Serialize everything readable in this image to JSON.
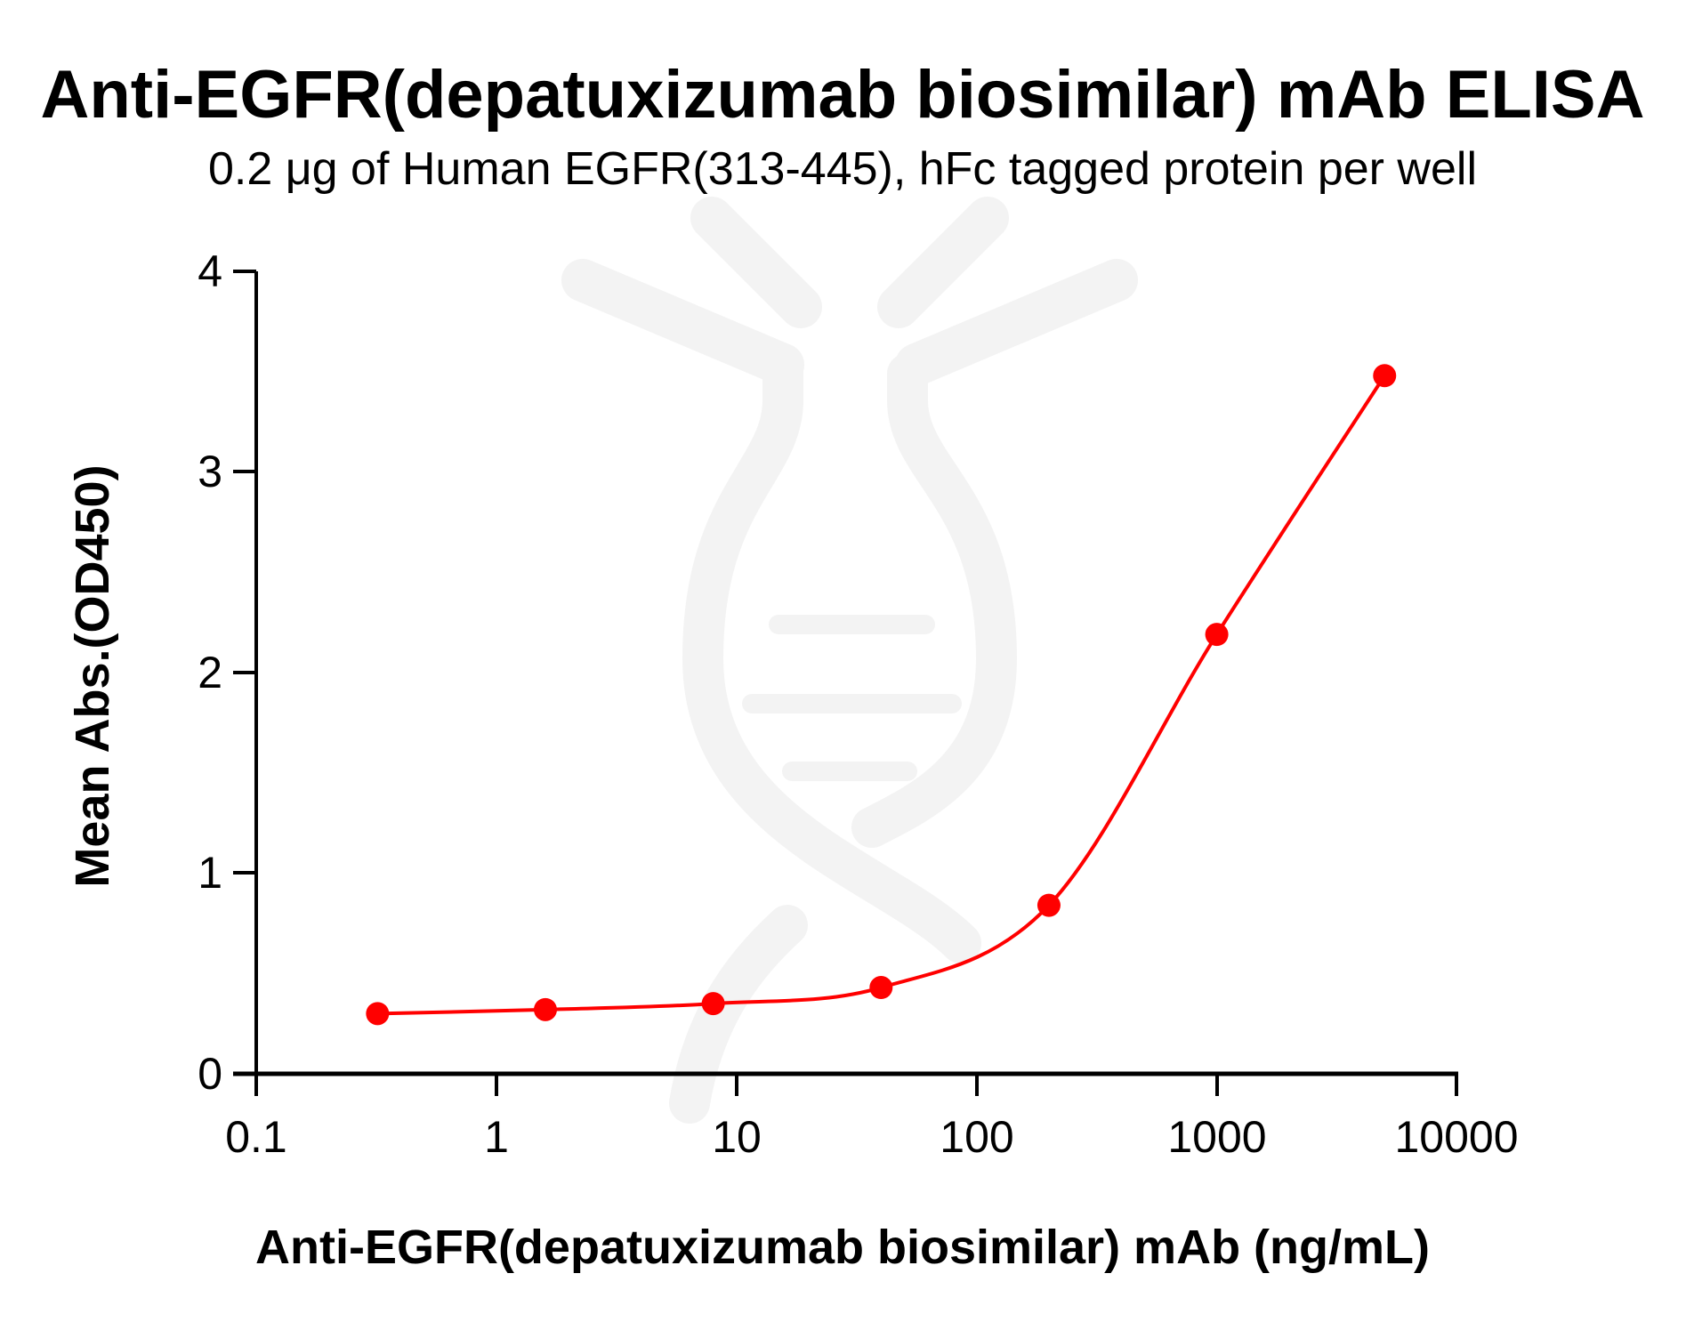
{
  "chart_data": {
    "type": "line",
    "title": "Anti-EGFR(depatuxizumab biosimilar) mAb ELISA",
    "subtitle": "0.2 μg of Human EGFR(313-445), hFc tagged protein per well",
    "xlabel": "Anti-EGFR(depatuxizumab biosimilar) mAb (ng/mL)",
    "ylabel": "Mean Abs.(OD450)",
    "xscale": "log",
    "xlim": [
      0.1,
      10000
    ],
    "ylim": [
      0,
      4
    ],
    "x_ticks": [
      "0.1",
      "1",
      "10",
      "100",
      "1000",
      "10000"
    ],
    "y_ticks": [
      "0",
      "1",
      "2",
      "3",
      "4"
    ],
    "grid": false,
    "legend": null,
    "series": [
      {
        "name": "Anti-EGFR(depatuxizumab biosimilar) mAb",
        "color": "#ff0000",
        "marker": "circle",
        "fit": "4PL sigmoidal curve",
        "x": [
          0.32,
          1.6,
          8,
          40,
          200,
          1000,
          5000
        ],
        "values": [
          0.3,
          0.32,
          0.35,
          0.43,
          0.84,
          2.19,
          3.48
        ]
      }
    ],
    "watermark": "light gray DNA/antibody logo"
  },
  "colors": {
    "series": "#ff0000",
    "axis": "#000000",
    "watermark": "#f3f3f3",
    "background": "#ffffff"
  }
}
